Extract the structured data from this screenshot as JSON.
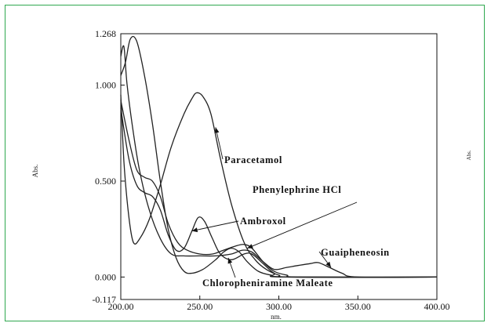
{
  "chart_data": {
    "type": "line",
    "xlabel": "nm.",
    "ylabel": "Abs.",
    "right_label": "Abs.",
    "xlim": [
      200,
      400
    ],
    "ylim": [
      -0.117,
      1.268
    ],
    "x_ticks": [
      "200.00",
      "250.00",
      "300.00",
      "350.00",
      "400.00"
    ],
    "y_ticks": [
      "1.268",
      "1.000",
      "0.500",
      "0.000",
      "-0.117"
    ],
    "y_tick_values": [
      1.268,
      1.0,
      0.5,
      0.0,
      -0.117
    ],
    "grid": false,
    "line_color": "#222222",
    "series": [
      {
        "name": "Paracetamol",
        "points": [
          [
            200,
            0.95
          ],
          [
            202,
            0.6
          ],
          [
            205,
            0.32
          ],
          [
            208,
            0.18
          ],
          [
            212,
            0.2
          ],
          [
            218,
            0.3
          ],
          [
            225,
            0.48
          ],
          [
            232,
            0.68
          ],
          [
            240,
            0.85
          ],
          [
            245,
            0.93
          ],
          [
            248,
            0.96
          ],
          [
            252,
            0.94
          ],
          [
            257,
            0.85
          ],
          [
            263,
            0.62
          ],
          [
            270,
            0.38
          ],
          [
            278,
            0.18
          ],
          [
            285,
            0.09
          ],
          [
            292,
            0.04
          ],
          [
            300,
            0.01
          ],
          [
            310,
            0.0
          ],
          [
            400,
            0.0
          ]
        ],
        "arrow_to": [
          260,
          0.78
        ]
      },
      {
        "name": "Phenylephrine HCl",
        "points": [
          [
            200,
            0.92
          ],
          [
            205,
            0.72
          ],
          [
            210,
            0.56
          ],
          [
            215,
            0.52
          ],
          [
            220,
            0.5
          ],
          [
            225,
            0.42
          ],
          [
            230,
            0.28
          ],
          [
            236,
            0.18
          ],
          [
            242,
            0.14
          ],
          [
            250,
            0.12
          ],
          [
            258,
            0.12
          ],
          [
            265,
            0.14
          ],
          [
            272,
            0.16
          ],
          [
            278,
            0.17
          ],
          [
            283,
            0.15
          ],
          [
            290,
            0.08
          ],
          [
            297,
            0.03
          ],
          [
            305,
            0.01
          ],
          [
            315,
            0.0
          ],
          [
            400,
            0.0
          ]
        ],
        "arrow_to": [
          280,
          0.15
        ]
      },
      {
        "name": "Ambroxol",
        "points": [
          [
            200,
            0.88
          ],
          [
            205,
            0.62
          ],
          [
            210,
            0.48
          ],
          [
            215,
            0.44
          ],
          [
            220,
            0.42
          ],
          [
            225,
            0.35
          ],
          [
            230,
            0.22
          ],
          [
            235,
            0.14
          ],
          [
            240,
            0.15
          ],
          [
            245,
            0.24
          ],
          [
            249,
            0.31
          ],
          [
            253,
            0.29
          ],
          [
            258,
            0.2
          ],
          [
            263,
            0.12
          ],
          [
            270,
            0.09
          ],
          [
            278,
            0.12
          ],
          [
            283,
            0.12
          ],
          [
            290,
            0.07
          ],
          [
            297,
            0.02
          ],
          [
            305,
            0.0
          ],
          [
            400,
            0.0
          ]
        ],
        "arrow_to": [
          245,
          0.24
        ]
      },
      {
        "name": "Guaipheneosin",
        "points": [
          [
            200,
            1.15
          ],
          [
            202,
            1.2
          ],
          [
            204,
            1.0
          ],
          [
            208,
            0.75
          ],
          [
            212,
            0.55
          ],
          [
            218,
            0.35
          ],
          [
            225,
            0.2
          ],
          [
            232,
            0.12
          ],
          [
            240,
            0.11
          ],
          [
            250,
            0.11
          ],
          [
            260,
            0.11
          ],
          [
            270,
            0.12
          ],
          [
            277,
            0.14
          ],
          [
            283,
            0.13
          ],
          [
            290,
            0.08
          ],
          [
            297,
            0.04
          ],
          [
            305,
            0.05
          ],
          [
            312,
            0.06
          ],
          [
            320,
            0.07
          ],
          [
            325,
            0.075
          ],
          [
            332,
            0.05
          ],
          [
            340,
            0.02
          ],
          [
            350,
            0.0
          ],
          [
            400,
            0.0
          ]
        ],
        "arrow_to": [
          333,
          0.05
        ]
      },
      {
        "name": "Chloropheniramine Maleate",
        "points": [
          [
            200,
            1.05
          ],
          [
            203,
            1.12
          ],
          [
            206,
            1.24
          ],
          [
            210,
            1.23
          ],
          [
            215,
            1.05
          ],
          [
            220,
            0.8
          ],
          [
            225,
            0.5
          ],
          [
            230,
            0.25
          ],
          [
            235,
            0.1
          ],
          [
            240,
            0.03
          ],
          [
            245,
            0.02
          ],
          [
            252,
            0.04
          ],
          [
            260,
            0.09
          ],
          [
            265,
            0.13
          ],
          [
            270,
            0.15
          ],
          [
            275,
            0.13
          ],
          [
            280,
            0.08
          ],
          [
            287,
            0.03
          ],
          [
            295,
            0.01
          ],
          [
            305,
            0.0
          ],
          [
            400,
            0.0
          ]
        ],
        "arrow_to": [
          268,
          0.1
        ]
      }
    ]
  }
}
